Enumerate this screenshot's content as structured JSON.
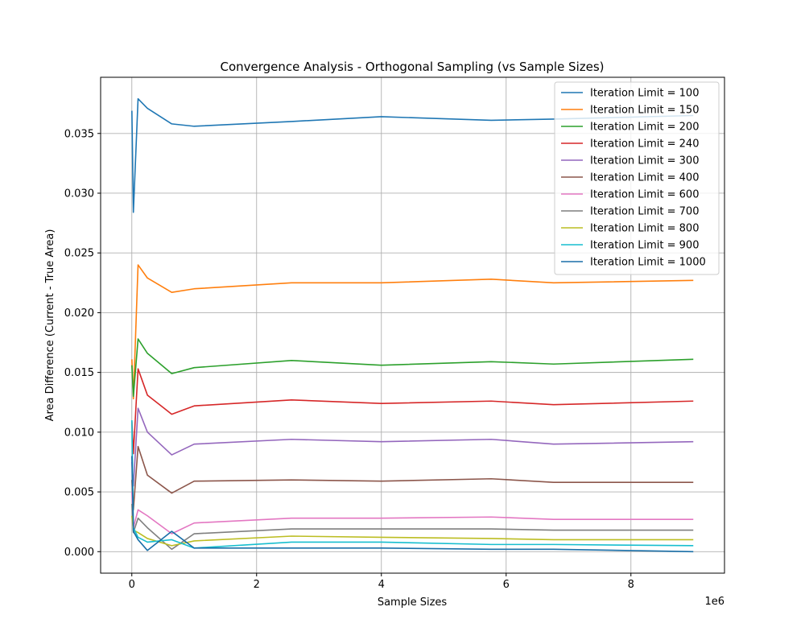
{
  "chart_data": {
    "type": "line",
    "title": "Convergence Analysis - Orthogonal Sampling (vs Sample Sizes)",
    "xlabel": "Sample Sizes",
    "ylabel": "Area Difference (Current - True Area)",
    "x_offset_label": "1e6",
    "xlim": [
      -500000,
      9500000
    ],
    "ylim": [
      -0.0018,
      0.0397
    ],
    "grid": true,
    "legend_position": "top-right",
    "x_ticks": [
      0,
      2000000,
      4000000,
      6000000,
      8000000
    ],
    "x_tick_labels": [
      "0",
      "2",
      "4",
      "6",
      "8"
    ],
    "y_ticks": [
      0.0,
      0.005,
      0.01,
      0.015,
      0.02,
      0.025,
      0.03,
      0.035
    ],
    "y_tick_labels": [
      "0.000",
      "0.005",
      "0.010",
      "0.015",
      "0.020",
      "0.025",
      "0.030",
      "0.035"
    ],
    "x": [
      1000,
      25000,
      100000,
      250000,
      640000,
      1000000,
      2560000,
      4000000,
      5760000,
      6760000,
      9000000
    ],
    "series": [
      {
        "name": "Iteration Limit = 100",
        "color": "#1f77b4",
        "values": [
          0.0369,
          0.0284,
          0.0379,
          0.0371,
          0.0358,
          0.0356,
          0.036,
          0.0364,
          0.0361,
          0.0362,
          0.0365
        ]
      },
      {
        "name": "Iteration Limit = 150",
        "color": "#ff7f0e",
        "values": [
          0.0161,
          0.0128,
          0.024,
          0.0229,
          0.0217,
          0.022,
          0.0225,
          0.0225,
          0.0228,
          0.0225,
          0.0227
        ]
      },
      {
        "name": "Iteration Limit = 200",
        "color": "#2ca02c",
        "values": [
          0.0156,
          0.013,
          0.0178,
          0.0166,
          0.0149,
          0.0154,
          0.016,
          0.0156,
          0.0159,
          0.0157,
          0.0161
        ]
      },
      {
        "name": "Iteration Limit = 240",
        "color": "#d62728",
        "values": [
          0.0109,
          0.0082,
          0.0153,
          0.0131,
          0.0115,
          0.0122,
          0.0127,
          0.0124,
          0.0126,
          0.0123,
          0.0126
        ]
      },
      {
        "name": "Iteration Limit = 300",
        "color": "#9467bd",
        "values": [
          0.0075,
          0.0055,
          0.012,
          0.01,
          0.0081,
          0.009,
          0.0094,
          0.0092,
          0.0094,
          0.009,
          0.0092
        ]
      },
      {
        "name": "Iteration Limit = 400",
        "color": "#8c564b",
        "values": [
          0.006,
          0.0035,
          0.0088,
          0.0064,
          0.0049,
          0.0059,
          0.006,
          0.0059,
          0.0061,
          0.0058,
          0.0058
        ]
      },
      {
        "name": "Iteration Limit = 600",
        "color": "#e377c2",
        "values": [
          0.005,
          0.002,
          0.0035,
          0.003,
          0.0015,
          0.0024,
          0.0028,
          0.0028,
          0.0029,
          0.0027,
          0.0027
        ]
      },
      {
        "name": "Iteration Limit = 700",
        "color": "#7f7f7f",
        "values": [
          0.004,
          0.0016,
          0.0028,
          0.002,
          0.0002,
          0.0015,
          0.0019,
          0.0019,
          0.0019,
          0.0018,
          0.0018
        ]
      },
      {
        "name": "Iteration Limit = 800",
        "color": "#bcbd22",
        "values": [
          0.003,
          0.0018,
          0.0016,
          0.0011,
          0.0005,
          0.0009,
          0.0013,
          0.0012,
          0.0011,
          0.001,
          0.001
        ]
      },
      {
        "name": "Iteration Limit = 900",
        "color": "#17becf",
        "values": [
          0.011,
          0.002,
          0.0012,
          0.0008,
          0.001,
          0.0003,
          0.0008,
          0.0008,
          0.0006,
          0.0006,
          0.0005
        ]
      },
      {
        "name": "Iteration Limit = 1000",
        "color": "#1a6fa8",
        "values": [
          0.008,
          0.0017,
          0.001,
          0.0001,
          0.0017,
          0.0003,
          0.0003,
          0.0003,
          0.0002,
          0.0002,
          0.0
        ]
      }
    ]
  }
}
